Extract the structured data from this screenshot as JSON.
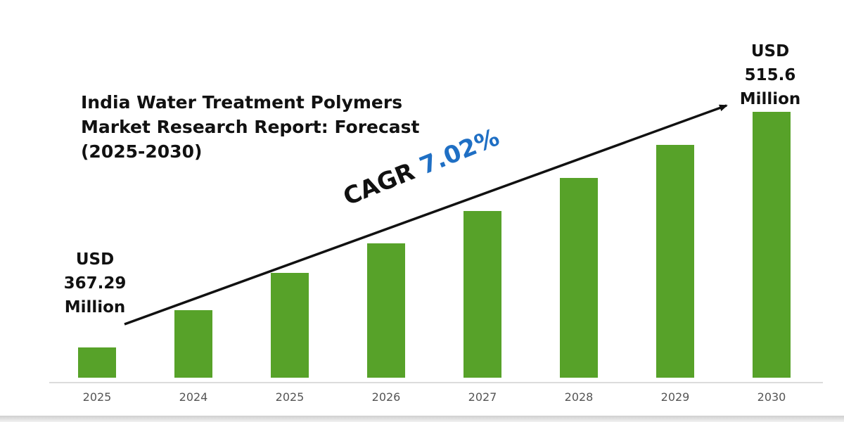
{
  "chart_data": {
    "type": "bar",
    "title": "India Water Treatment Polymers Market Research Report: Forecast (2025-2030)",
    "categories": [
      "2025",
      "2024",
      "2025",
      "2026",
      "2027",
      "2028",
      "2029",
      "2030"
    ],
    "series": [
      {
        "values": [
          43,
          96,
          149,
          191,
          237,
          284,
          331,
          378
        ]
      }
    ],
    "ylim": [
      0,
      400
    ],
    "grid": false,
    "start_annotation": [
      "USD",
      "367.29",
      "Million"
    ],
    "end_annotation": [
      "USD",
      "515.6",
      "Million"
    ],
    "cagr_label": "CAGR",
    "cagr_value": "7.02%",
    "colors": {
      "bar": "#57a229",
      "cagr": "#1f6fc4",
      "axis": "#d0d0d0",
      "text": "#111111",
      "tick": "#555555"
    }
  }
}
